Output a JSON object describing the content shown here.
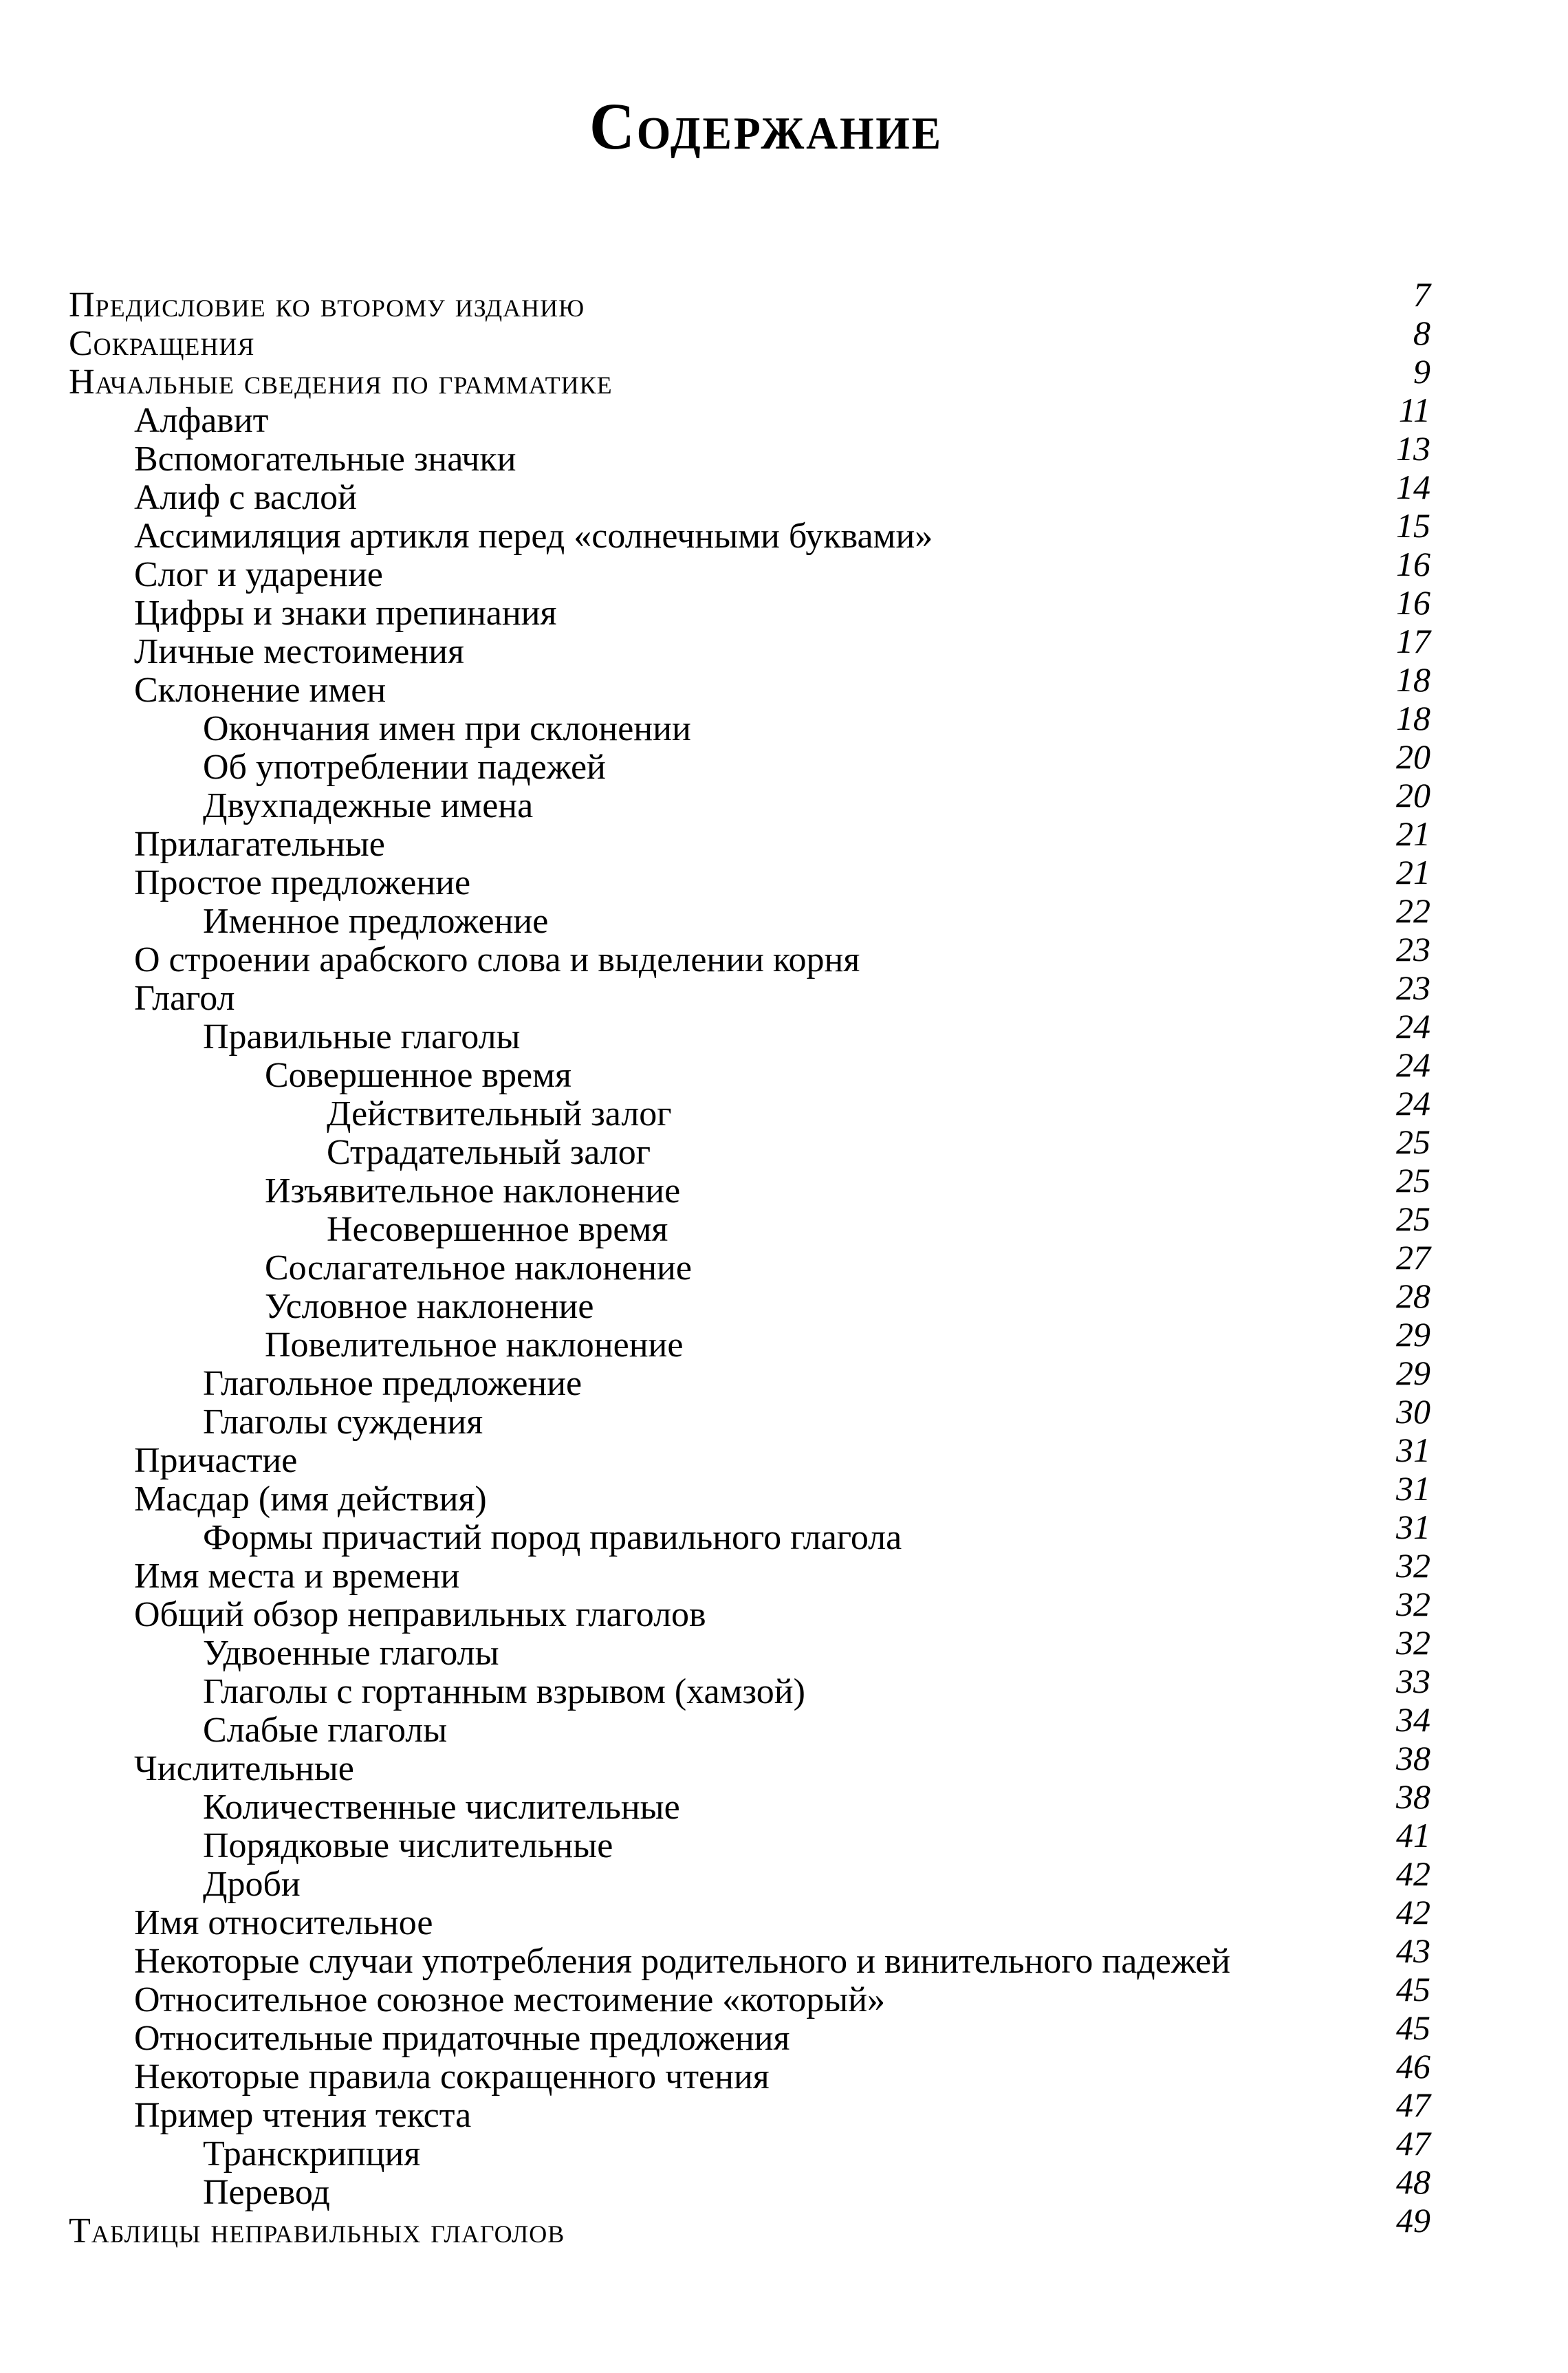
{
  "page_title": "Содержание",
  "toc": [
    {
      "label": "Предисловие ко второму изданию",
      "page": "7",
      "indent": 0,
      "caps": true
    },
    {
      "label": "Сокращения",
      "page": "8",
      "indent": 0,
      "caps": true
    },
    {
      "label": "Начальные сведения по грамматике",
      "page": "9",
      "indent": 0,
      "caps": true
    },
    {
      "label": "Алфавит",
      "page": "11",
      "indent": 1,
      "caps": false
    },
    {
      "label": "Вспомогательные значки",
      "page": "13",
      "indent": 1,
      "caps": false
    },
    {
      "label": "Алиф с васлой",
      "page": "14",
      "indent": 1,
      "caps": false
    },
    {
      "label": "Ассимиляция артикля перед «солнечными буквами»",
      "page": "15",
      "indent": 1,
      "caps": false
    },
    {
      "label": "Слог и ударение",
      "page": "16",
      "indent": 1,
      "caps": false
    },
    {
      "label": "Цифры и знаки препинания",
      "page": "16",
      "indent": 1,
      "caps": false
    },
    {
      "label": "Личные местоимения",
      "page": "17",
      "indent": 1,
      "caps": false
    },
    {
      "label": "Склонение имен",
      "page": "18",
      "indent": 1,
      "caps": false
    },
    {
      "label": "Окончания имен при склонении",
      "page": "18",
      "indent": 2,
      "caps": false
    },
    {
      "label": "Об употреблении падежей",
      "page": "20",
      "indent": 2,
      "caps": false
    },
    {
      "label": "Двухпадежные имена",
      "page": "20",
      "indent": 2,
      "caps": false
    },
    {
      "label": "Прилагательные",
      "page": "21",
      "indent": 1,
      "caps": false
    },
    {
      "label": "Простое предложение",
      "page": "21",
      "indent": 1,
      "caps": false
    },
    {
      "label": "Именное предложение",
      "page": "22",
      "indent": 2,
      "caps": false
    },
    {
      "label": "О строении арабского слова и выделении корня",
      "page": "23",
      "indent": 1,
      "caps": false
    },
    {
      "label": "Глагол",
      "page": "23",
      "indent": 1,
      "caps": false
    },
    {
      "label": "Правильные глаголы",
      "page": "24",
      "indent": 2,
      "caps": false
    },
    {
      "label": "Совершенное время",
      "page": "24",
      "indent": 3,
      "caps": false
    },
    {
      "label": "Действительный залог",
      "page": "24",
      "indent": 4,
      "caps": false
    },
    {
      "label": "Страдательный залог",
      "page": "25",
      "indent": 4,
      "caps": false
    },
    {
      "label": "Изъявительное наклонение",
      "page": "25",
      "indent": 3,
      "caps": false
    },
    {
      "label": "Несовершенное время",
      "page": "25",
      "indent": 4,
      "caps": false
    },
    {
      "label": "Сослагательное наклонение",
      "page": "27",
      "indent": 3,
      "caps": false
    },
    {
      "label": "Условное наклонение",
      "page": "28",
      "indent": 3,
      "caps": false
    },
    {
      "label": "Повелительное наклонение",
      "page": "29",
      "indent": 3,
      "caps": false
    },
    {
      "label": "Глагольное предложение",
      "page": "29",
      "indent": 2,
      "caps": false
    },
    {
      "label": "Глаголы суждения",
      "page": "30",
      "indent": 2,
      "caps": false
    },
    {
      "label": "Причастие",
      "page": "31",
      "indent": 1,
      "caps": false
    },
    {
      "label": "Масдар (имя действия)",
      "page": "31",
      "indent": 1,
      "caps": false
    },
    {
      "label": "Формы причастий пород правильного глагола",
      "page": "31",
      "indent": 2,
      "caps": false
    },
    {
      "label": "Имя места и времени",
      "page": "32",
      "indent": 1,
      "caps": false
    },
    {
      "label": "Общий обзор неправильных глаголов",
      "page": "32",
      "indent": 1,
      "caps": false
    },
    {
      "label": "Удвоенные глаголы",
      "page": "32",
      "indent": 2,
      "caps": false
    },
    {
      "label": "Глаголы с гортанным взрывом (хамзой)",
      "page": "33",
      "indent": 2,
      "caps": false
    },
    {
      "label": "Слабые глаголы",
      "page": "34",
      "indent": 2,
      "caps": false
    },
    {
      "label": "Числительные",
      "page": "38",
      "indent": 1,
      "caps": false
    },
    {
      "label": "Количественные числительные",
      "page": "38",
      "indent": 2,
      "caps": false
    },
    {
      "label": "Порядковые числительные",
      "page": "41",
      "indent": 2,
      "caps": false
    },
    {
      "label": "Дроби",
      "page": "42",
      "indent": 2,
      "caps": false
    },
    {
      "label": "Имя относительное",
      "page": "42",
      "indent": 1,
      "caps": false
    },
    {
      "label": "Некоторые случаи употребления родительного и винительного падежей",
      "page": "43",
      "indent": 1,
      "caps": false
    },
    {
      "label": "Относительное союзное местоимение «который»",
      "page": "45",
      "indent": 1,
      "caps": false
    },
    {
      "label": "Относительные придаточные предложения",
      "page": "45",
      "indent": 1,
      "caps": false
    },
    {
      "label": "Некоторые правила сокращенного чтения",
      "page": "46",
      "indent": 1,
      "caps": false
    },
    {
      "label": "Пример чтения текста",
      "page": "47",
      "indent": 1,
      "caps": false
    },
    {
      "label": "Транскрипция",
      "page": "47",
      "indent": 2,
      "caps": false
    },
    {
      "label": "Перевод",
      "page": "48",
      "indent": 2,
      "caps": false
    },
    {
      "label": "Таблицы неправильных глаголов",
      "page": "49",
      "indent": 0,
      "caps": true
    }
  ]
}
